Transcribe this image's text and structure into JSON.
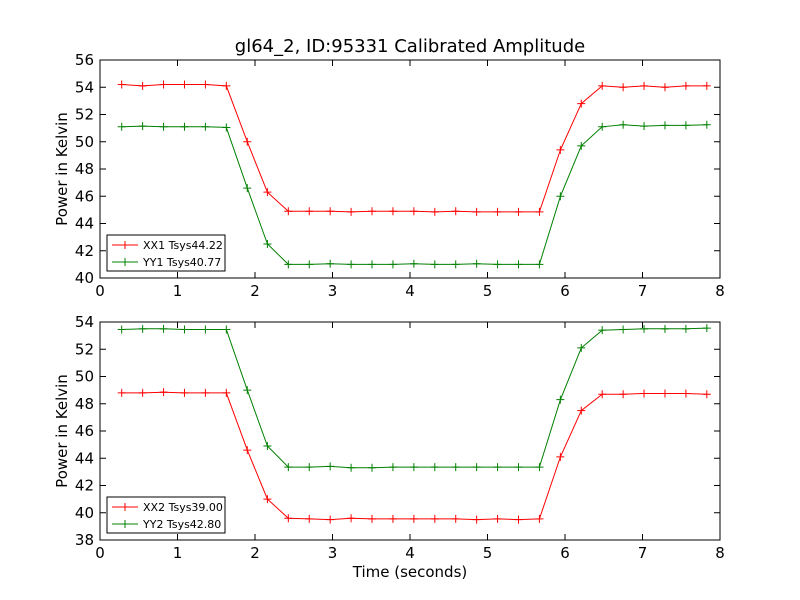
{
  "figure": {
    "title": "gl64_2, ID:95331 Calibrated Amplitude",
    "xlabel": "Time (seconds)"
  },
  "chart_data": [
    {
      "type": "line",
      "title": "gl64_2, ID:95331 Calibrated Amplitude",
      "xlabel": "",
      "ylabel": "Power in Kelvin",
      "xlim": [
        0,
        8
      ],
      "ylim": [
        40,
        56
      ],
      "xticks": [
        0,
        1,
        2,
        3,
        4,
        5,
        6,
        7,
        8
      ],
      "yticks": [
        40,
        42,
        44,
        46,
        48,
        50,
        52,
        54,
        56
      ],
      "grid": false,
      "legend_position": "lower-left",
      "x": [
        0.28,
        0.55,
        0.82,
        1.09,
        1.36,
        1.63,
        1.9,
        2.16,
        2.43,
        2.7,
        2.97,
        3.24,
        3.51,
        3.78,
        4.05,
        4.32,
        4.59,
        4.86,
        5.13,
        5.4,
        5.67,
        5.94,
        6.21,
        6.48,
        6.75,
        7.02,
        7.29,
        7.56,
        7.83
      ],
      "series": [
        {
          "name": "XX1 Tsys44.22",
          "color": "#ff0000",
          "values": [
            54.2,
            54.1,
            54.2,
            54.2,
            54.2,
            54.1,
            50.0,
            46.3,
            44.9,
            44.9,
            44.9,
            44.85,
            44.9,
            44.9,
            44.9,
            44.85,
            44.9,
            44.85,
            44.85,
            44.85,
            44.85,
            49.4,
            52.8,
            54.1,
            54.0,
            54.1,
            54.0,
            54.1,
            54.1
          ]
        },
        {
          "name": "YY1 Tsys40.77",
          "color": "#008000",
          "values": [
            51.1,
            51.15,
            51.1,
            51.1,
            51.1,
            51.05,
            46.6,
            42.5,
            41.0,
            41.0,
            41.05,
            41.0,
            41.0,
            41.0,
            41.05,
            41.0,
            41.0,
            41.05,
            41.0,
            41.0,
            41.0,
            46.0,
            49.7,
            51.1,
            51.25,
            51.15,
            51.2,
            51.2,
            51.25
          ]
        }
      ]
    },
    {
      "type": "line",
      "title": "",
      "xlabel": "Time (seconds)",
      "ylabel": "Power in Kelvin",
      "xlim": [
        0,
        8
      ],
      "ylim": [
        38,
        54
      ],
      "xticks": [
        0,
        1,
        2,
        3,
        4,
        5,
        6,
        7,
        8
      ],
      "yticks": [
        38,
        40,
        42,
        44,
        46,
        48,
        50,
        52,
        54
      ],
      "grid": false,
      "legend_position": "lower-left",
      "x": [
        0.28,
        0.55,
        0.82,
        1.09,
        1.36,
        1.63,
        1.9,
        2.16,
        2.43,
        2.7,
        2.97,
        3.24,
        3.51,
        3.78,
        4.05,
        4.32,
        4.59,
        4.86,
        5.13,
        5.4,
        5.67,
        5.94,
        6.21,
        6.48,
        6.75,
        7.02,
        7.29,
        7.56,
        7.83
      ],
      "series": [
        {
          "name": "XX2 Tsys39.00",
          "color": "#ff0000",
          "values": [
            48.8,
            48.8,
            48.85,
            48.8,
            48.8,
            48.8,
            44.6,
            41.0,
            39.6,
            39.55,
            39.5,
            39.6,
            39.55,
            39.55,
            39.55,
            39.55,
            39.55,
            39.5,
            39.55,
            39.5,
            39.55,
            44.1,
            47.5,
            48.7,
            48.7,
            48.75,
            48.75,
            48.75,
            48.7
          ]
        },
        {
          "name": "YY2 Tsys42.80",
          "color": "#008000",
          "values": [
            53.45,
            53.5,
            53.5,
            53.45,
            53.45,
            53.45,
            49.0,
            44.9,
            43.35,
            43.35,
            43.4,
            43.3,
            43.3,
            43.35,
            43.35,
            43.35,
            43.35,
            43.35,
            43.35,
            43.35,
            43.35,
            48.3,
            52.1,
            53.4,
            53.45,
            53.5,
            53.5,
            53.5,
            53.55
          ]
        }
      ]
    }
  ]
}
